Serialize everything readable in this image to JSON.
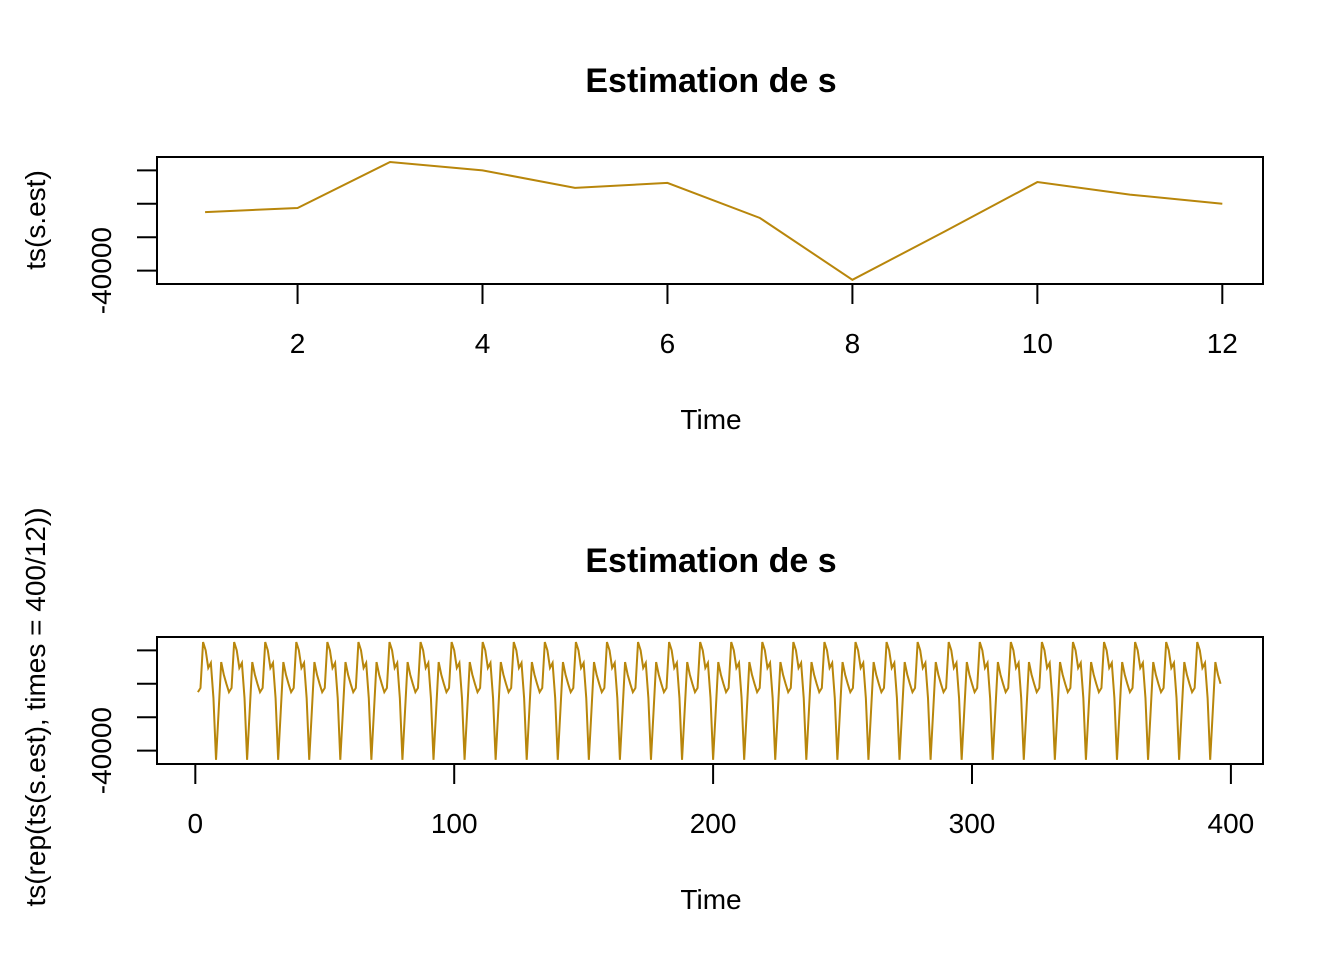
{
  "line_color": "#B8860B",
  "chart_data": [
    {
      "type": "line",
      "title": "Estimation de s",
      "xlabel": "Time",
      "ylabel": "ts(s.est)",
      "x_ticks": [
        "2",
        "4",
        "6",
        "8",
        "10",
        "12"
      ],
      "y_ticks": [
        "-40000"
      ],
      "xlim": [
        0.48,
        12.44
      ],
      "ylim": [
        -48000,
        28000
      ],
      "grid": false,
      "series": [
        {
          "x": [
            1,
            2,
            3,
            4,
            5,
            6,
            7,
            8,
            9,
            10,
            11,
            12
          ],
          "values": [
            -5000,
            -2500,
            25000,
            20000,
            9500,
            12500,
            -8500,
            -45500,
            -16500,
            13000,
            5500,
            0
          ]
        }
      ]
    },
    {
      "type": "line",
      "title": "Estimation de s",
      "xlabel": "Time",
      "ylabel": "ts(rep(ts(s.est), times = 400/12))",
      "x_ticks": [
        "0",
        "100",
        "200",
        "300",
        "400"
      ],
      "y_ticks": [
        "-40000"
      ],
      "xlim": [
        -14.8,
        412.4
      ],
      "ylim": [
        -48000,
        28000
      ],
      "grid": false,
      "series": [
        {
          "pattern": [
            -5000,
            -2500,
            25000,
            20000,
            9500,
            12500,
            -8500,
            -45500,
            -16500,
            13000,
            5500,
            0
          ],
          "repeat": 33,
          "x_start": 1
        }
      ]
    }
  ]
}
